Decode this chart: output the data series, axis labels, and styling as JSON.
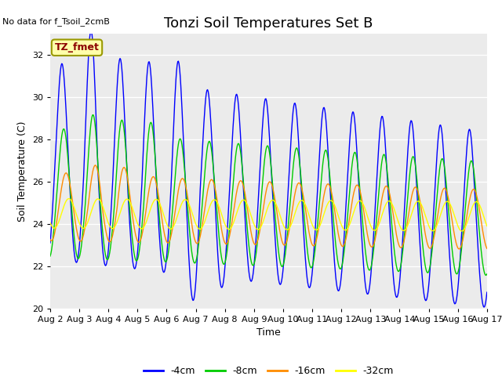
{
  "title": "Tonzi Soil Temperatures Set B",
  "xlabel": "Time",
  "ylabel": "Soil Temperature (C)",
  "no_data_text": "No data for f_Tsoil_2cmB",
  "annotation_text": "TZ_fmet",
  "ylim": [
    20,
    33
  ],
  "yticks": [
    20,
    22,
    24,
    26,
    28,
    30,
    32
  ],
  "xtick_labels": [
    "Aug 2",
    "Aug 3",
    "Aug 4",
    "Aug 5",
    "Aug 6",
    "Aug 7",
    "Aug 8",
    "Aug 9",
    "Aug 10",
    "Aug 11",
    "Aug 12",
    "Aug 13",
    "Aug 14",
    "Aug 15",
    "Aug 16",
    "Aug 17"
  ],
  "colors": {
    "4cm": "#0000FF",
    "8cm": "#00CC00",
    "16cm": "#FF8C00",
    "32cm": "#FFFF00"
  },
  "legend_labels": [
    "-4cm",
    "-8cm",
    "-16cm",
    "-32cm"
  ],
  "plot_bg_color": "#EBEBEB",
  "title_fontsize": 13,
  "axis_fontsize": 9,
  "tick_fontsize": 8,
  "annotation_fontsize": 9,
  "no_data_fontsize": 8
}
